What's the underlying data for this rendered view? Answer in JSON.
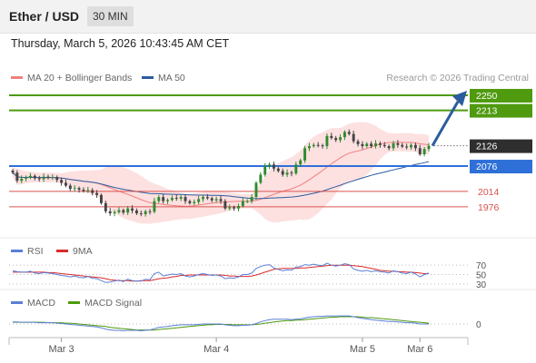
{
  "header": {
    "instrument": "Ether / USD",
    "timeframe": "30 MIN",
    "timestamp": "Thursday, March 5, 2026 10:43:45 AM CET"
  },
  "legend": {
    "ma20_label": "MA 20 + Bollinger Bands",
    "ma50_label": "MA 50",
    "rsi_label": "RSI",
    "rsi_ma_label": "9MA",
    "macd_label": "MACD",
    "macd_signal_label": "MACD Signal"
  },
  "copyright": "Research © 2026 Trading Central",
  "colors": {
    "ma20": "#f08080",
    "bollinger_fill": "#fde0e0",
    "ma50": "#2b5c9e",
    "up": "#2e8b2e",
    "down": "#444444",
    "resistance": "#4f9a0f",
    "pivot": "#2e6fd8",
    "support": "#d9534f",
    "last_price": "#2e2e2e",
    "arrow": "#2b5c9e",
    "rsi": "#5b7fd6",
    "rsi_ma": "#d92b2b",
    "macd": "#5b7fd6",
    "macd_signal": "#4f9a0f"
  },
  "chart_data": [
    {
      "type": "candlestick",
      "x_ticks": [
        "Mar 3",
        "Mar 4",
        "Mar 5",
        "Mar 6"
      ],
      "ylim": [
        1900,
        2270
      ],
      "levels": [
        {
          "value": 2250,
          "label": "2250",
          "kind": "resistance"
        },
        {
          "value": 2213,
          "label": "2213",
          "kind": "resistance"
        },
        {
          "value": 2126,
          "label": "2126",
          "kind": "last_price"
        },
        {
          "value": 2076,
          "label": "2076",
          "kind": "pivot"
        },
        {
          "value": 2014,
          "label": "2014",
          "kind": "support"
        },
        {
          "value": 1976,
          "label": "1976",
          "kind": "support"
        }
      ],
      "arrow": {
        "from": 2126,
        "to": 2250,
        "direction": "up"
      },
      "close": [
        2060,
        2040,
        2045,
        2048,
        2052,
        2046,
        2044,
        2050,
        2047,
        2049,
        2042,
        2035,
        2028,
        2020,
        2022,
        2018,
        2015,
        2017,
        2010,
        2005,
        1985,
        1965,
        1960,
        1963,
        1968,
        1962,
        1972,
        1967,
        1960,
        1958,
        1965,
        1964,
        1990,
        2000,
        1990,
        1993,
        1998,
        1996,
        2000,
        1990,
        1985,
        1988,
        1995,
        2000,
        1997,
        1992,
        1995,
        1990,
        1972,
        1975,
        1972,
        1978,
        1990,
        1990,
        2000,
        2035,
        2055,
        2075,
        2080,
        2070,
        2064,
        2055,
        2060,
        2058,
        2080,
        2090,
        2120,
        2125,
        2128,
        2127,
        2125,
        2150,
        2145,
        2140,
        2147,
        2160,
        2155,
        2137,
        2130,
        2125,
        2131,
        2125,
        2132,
        2128,
        2125,
        2120,
        2132,
        2128,
        2124,
        2122,
        2128,
        2120,
        2105,
        2118,
        2126
      ]
    },
    {
      "type": "line",
      "title": "RSI",
      "y_ticks": [
        30,
        50,
        70
      ],
      "ylim": [
        20,
        80
      ],
      "series": [
        {
          "name": "RSI",
          "values": [
            58,
            56,
            55,
            55,
            57,
            53,
            52,
            54,
            53,
            52,
            50,
            48,
            47,
            45,
            47,
            44,
            43,
            46,
            42,
            41,
            37,
            33,
            34,
            36,
            38,
            35,
            40,
            37,
            36,
            36,
            40,
            39,
            52,
            55,
            47,
            49,
            51,
            50,
            52,
            47,
            45,
            47,
            50,
            52,
            50,
            48,
            49,
            47,
            41,
            43,
            42,
            45,
            50,
            50,
            53,
            63,
            67,
            70,
            71,
            64,
            61,
            58,
            60,
            59,
            66,
            67,
            71,
            70,
            72,
            70,
            69,
            74,
            70,
            68,
            70,
            73,
            71,
            62,
            59,
            57,
            59,
            56,
            58,
            56,
            55,
            53,
            58,
            56,
            53,
            52,
            55,
            51,
            45,
            50,
            53
          ]
        },
        {
          "name": "9MA",
          "values": [
            55,
            55,
            55,
            55,
            55,
            55,
            55,
            55,
            54,
            54,
            53,
            52,
            51,
            50,
            49,
            48,
            47,
            46,
            45,
            44,
            43,
            41,
            39,
            38,
            37,
            37,
            37,
            36,
            36,
            37,
            37,
            37,
            39,
            41,
            42,
            43,
            45,
            46,
            48,
            48,
            49,
            49,
            49,
            49,
            49,
            49,
            49,
            49,
            48,
            47,
            47,
            46,
            46,
            46,
            47,
            49,
            52,
            55,
            58,
            61,
            62,
            63,
            63,
            63,
            63,
            64,
            64,
            65,
            66,
            67,
            68,
            69,
            70,
            70,
            70,
            70,
            70,
            69,
            68,
            67,
            65,
            63,
            61,
            59,
            58,
            57,
            57,
            56,
            56,
            55,
            55,
            54,
            53,
            52,
            52
          ]
        }
      ]
    },
    {
      "type": "line",
      "title": "MACD",
      "y_ticks": [
        0
      ],
      "ylim": [
        -32,
        32
      ],
      "series": [
        {
          "name": "MACD",
          "values": [
            5,
            5,
            4,
            4,
            4,
            4,
            3,
            3,
            3,
            3,
            2,
            1,
            0,
            -1,
            -2,
            -3,
            -4,
            -5,
            -6,
            -7,
            -9,
            -12,
            -14,
            -15,
            -15,
            -16,
            -15,
            -15,
            -15,
            -16,
            -15,
            -14,
            -11,
            -8,
            -7,
            -6,
            -4,
            -3,
            -2,
            -2,
            -2,
            -2,
            -1,
            0,
            0,
            0,
            0,
            0,
            -2,
            -3,
            -4,
            -4,
            -3,
            -3,
            -2,
            1,
            5,
            8,
            10,
            11,
            11,
            11,
            11,
            10,
            11,
            12,
            14,
            16,
            17,
            18,
            18,
            19,
            19,
            19,
            19,
            19,
            19,
            17,
            15,
            13,
            12,
            10,
            9,
            8,
            7,
            6,
            6,
            5,
            4,
            3,
            3,
            2,
            0,
            0,
            0
          ]
        },
        {
          "name": "MACD Signal",
          "values": [
            4,
            4,
            4,
            4,
            4,
            4,
            4,
            4,
            3,
            3,
            3,
            3,
            2,
            2,
            1,
            0,
            -1,
            -2,
            -3,
            -4,
            -5,
            -6,
            -8,
            -9,
            -10,
            -11,
            -12,
            -13,
            -14,
            -14,
            -14,
            -14,
            -14,
            -13,
            -12,
            -11,
            -10,
            -9,
            -8,
            -7,
            -6,
            -5,
            -4,
            -3,
            -2,
            -2,
            -1,
            -1,
            -1,
            -1,
            -2,
            -2,
            -2,
            -2,
            -2,
            -1,
            0,
            2,
            3,
            5,
            6,
            7,
            8,
            8,
            9,
            9,
            10,
            11,
            12,
            13,
            14,
            15,
            16,
            16,
            17,
            17,
            17,
            17,
            17,
            16,
            15,
            15,
            14,
            13,
            12,
            11,
            10,
            9,
            8,
            7,
            6,
            5,
            4,
            3,
            2
          ]
        }
      ]
    }
  ]
}
